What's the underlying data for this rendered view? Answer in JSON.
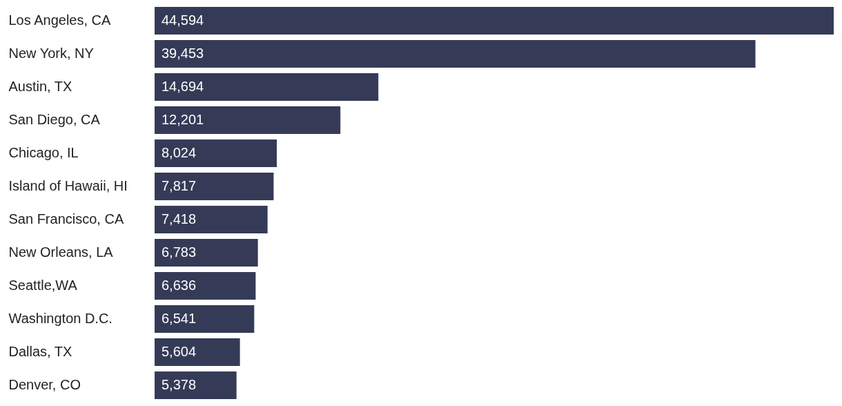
{
  "chart_data": {
    "type": "bar",
    "orientation": "horizontal",
    "color": "#353b57",
    "categories": [
      "Los Angeles, CA",
      "New York, NY",
      "Austin, TX",
      "San Diego, CA",
      "Chicago, IL",
      "Island of Hawaii, HI",
      "San Francisco, CA",
      "New Orleans, LA",
      "Seattle,WA",
      "Washington D.C.",
      "Dallas, TX",
      "Denver, CO"
    ],
    "values": [
      44594,
      39453,
      14694,
      12201,
      8024,
      7817,
      7418,
      6783,
      6636,
      6541,
      5604,
      5378
    ],
    "value_labels": [
      "44,594",
      "39,453",
      "14,694",
      "12,201",
      "8,024",
      "7,817",
      "7,418",
      "6,783",
      "6,636",
      "6,541",
      "5,604",
      "5,378"
    ]
  }
}
